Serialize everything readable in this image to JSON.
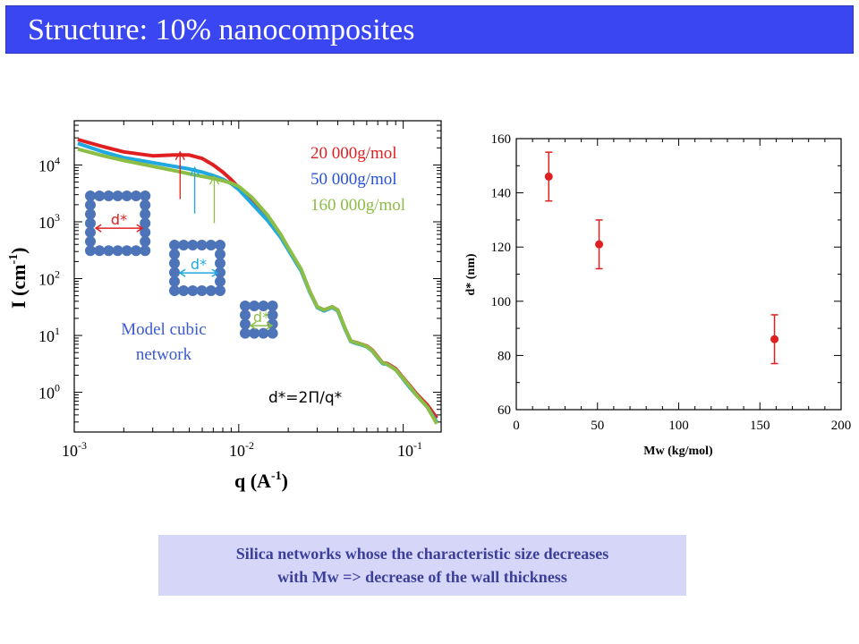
{
  "title": "Structure: 10% nanocomposites",
  "caption": {
    "line1": "Silica networks whose the characteristic size decreases",
    "line2": "with Mw => decrease of the wall thickness"
  },
  "chart_data": [
    {
      "type": "line",
      "xscale": "log",
      "yscale": "log",
      "xlim": [
        0.001,
        0.17
      ],
      "ylim": [
        0.2,
        60000
      ],
      "xlabel": "q (A-1)",
      "ylabel": "I (cm-1)",
      "x_ticks": [
        "10-3",
        "10-2",
        "10-1"
      ],
      "y_ticks": [
        "100",
        "101",
        "102",
        "103",
        "104"
      ],
      "series": [
        {
          "name": "20 000g/mol",
          "color": "#e02020",
          "x": [
            0.00105,
            0.0015,
            0.002,
            0.003,
            0.004,
            0.005,
            0.006,
            0.007,
            0.008,
            0.009,
            0.01,
            0.012,
            0.015,
            0.018,
            0.02,
            0.024,
            0.027,
            0.03,
            0.033,
            0.037,
            0.04,
            0.044,
            0.048,
            0.052,
            0.056,
            0.06,
            0.065,
            0.07,
            0.075,
            0.08,
            0.09,
            0.1,
            0.11,
            0.12,
            0.14,
            0.16
          ],
          "y": [
            28000,
            21000,
            17000,
            14500,
            15000,
            15000,
            13000,
            10000,
            7500,
            5500,
            4000,
            2200,
            1100,
            550,
            330,
            140,
            60,
            32,
            28,
            32,
            28,
            14,
            8,
            7.5,
            7,
            6.5,
            5.5,
            4.2,
            3.3,
            3.2,
            2.6,
            1.8,
            1.3,
            0.95,
            0.6,
            0.35
          ]
        },
        {
          "name": "50 000g/mol",
          "color": "#20a8e0",
          "x": [
            0.00105,
            0.0015,
            0.002,
            0.003,
            0.004,
            0.005,
            0.006,
            0.007,
            0.008,
            0.009,
            0.01,
            0.012,
            0.015,
            0.018,
            0.02,
            0.024,
            0.027,
            0.03,
            0.033,
            0.037,
            0.04,
            0.044,
            0.048,
            0.052,
            0.056,
            0.06,
            0.065,
            0.07,
            0.075,
            0.08,
            0.09,
            0.1,
            0.11,
            0.12,
            0.14,
            0.16
          ],
          "y": [
            24000,
            17000,
            13500,
            11000,
            9500,
            8500,
            7500,
            6500,
            5600,
            4700,
            3700,
            2100,
            1050,
            530,
            320,
            135,
            58,
            31,
            27,
            31,
            27,
            13.5,
            7.8,
            7.2,
            6.8,
            6.3,
            5.3,
            4,
            3.2,
            3.1,
            2.5,
            1.7,
            1.2,
            0.9,
            0.55,
            0.3
          ]
        },
        {
          "name": "160 000g/mol",
          "color": "#8cbd45",
          "x": [
            0.00105,
            0.0015,
            0.002,
            0.003,
            0.004,
            0.005,
            0.006,
            0.007,
            0.008,
            0.009,
            0.01,
            0.012,
            0.015,
            0.018,
            0.02,
            0.024,
            0.027,
            0.03,
            0.033,
            0.037,
            0.04,
            0.044,
            0.048,
            0.052,
            0.056,
            0.06,
            0.065,
            0.07,
            0.075,
            0.08,
            0.09,
            0.1,
            0.11,
            0.12,
            0.14,
            0.16
          ],
          "y": [
            19000,
            14500,
            12000,
            9500,
            8000,
            7000,
            6300,
            5800,
            5300,
            4800,
            4200,
            2700,
            1300,
            600,
            350,
            145,
            60,
            32,
            28,
            32,
            28,
            14,
            8,
            7.4,
            7,
            6.4,
            5.4,
            4.1,
            3.3,
            3.1,
            2.5,
            1.75,
            1.25,
            0.9,
            0.55,
            0.28
          ]
        }
      ],
      "arrows": [
        {
          "color": "#e02020",
          "q": 0.0044,
          "y_tip": 17000,
          "y_tail": 2500
        },
        {
          "color": "#20a8e0",
          "q": 0.0054,
          "y_tip": 9000,
          "y_tail": 1400
        },
        {
          "color": "#8cbd45",
          "q": 0.0071,
          "y_tip": 6300,
          "y_tail": 950
        }
      ],
      "annotations": {
        "model": [
          "Model cubic",
          "network"
        ],
        "formula": "d*=2Π/q*",
        "d_label": "d*"
      }
    },
    {
      "type": "scatter",
      "xlim": [
        0,
        200
      ],
      "ylim": [
        60,
        160
      ],
      "x_ticks": [
        0,
        50,
        100,
        150,
        200
      ],
      "y_ticks": [
        60,
        80,
        100,
        120,
        140,
        160
      ],
      "xlabel": "Mw (kg/mol)",
      "ylabel": "d* (nm)",
      "color": "#e02020",
      "points": [
        {
          "x": 20,
          "y": 146,
          "err": 9
        },
        {
          "x": 51,
          "y": 121,
          "err": 9
        },
        {
          "x": 159,
          "y": 86,
          "err": 9
        }
      ]
    }
  ]
}
